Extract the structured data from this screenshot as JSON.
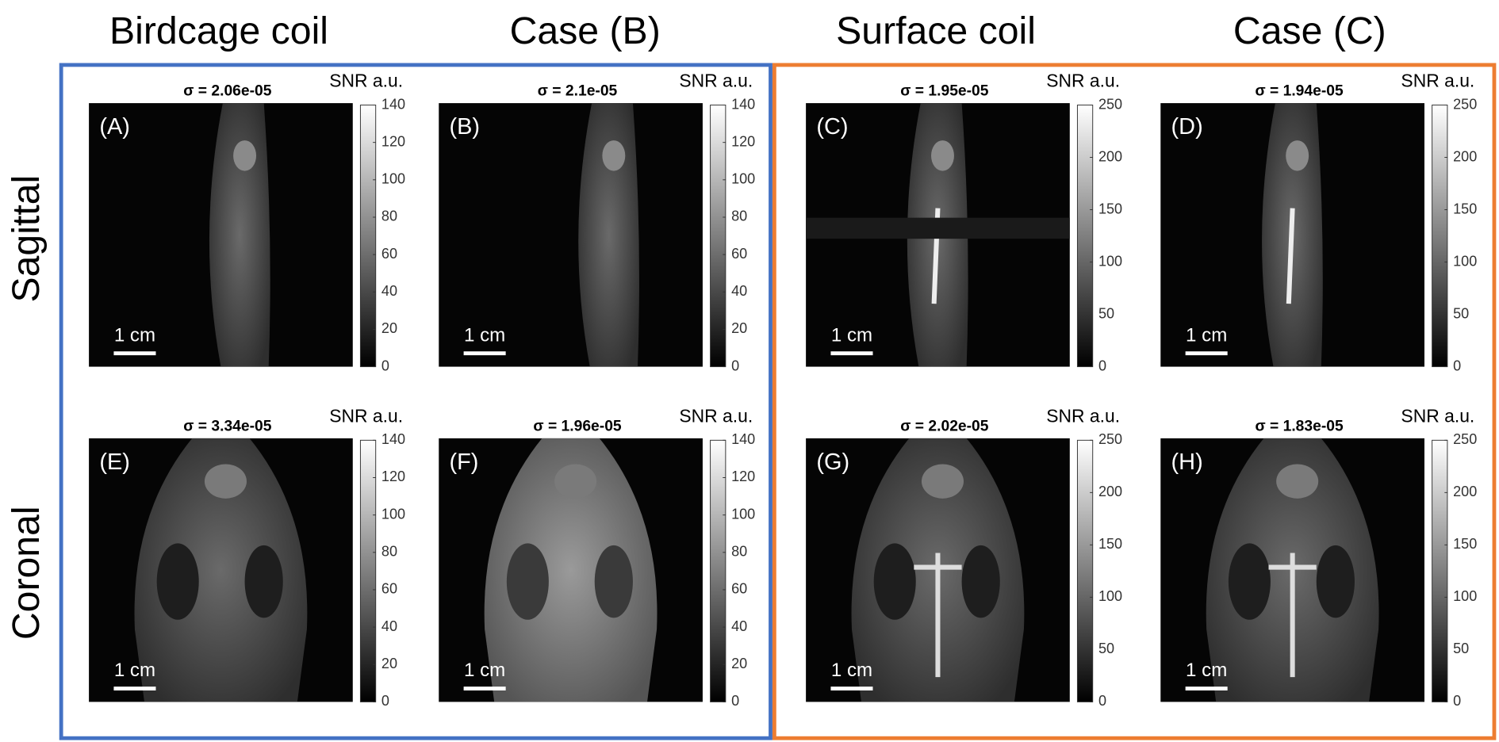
{
  "column_headers": [
    "Birdcage coil",
    "Case (B)",
    "Surface coil",
    "Case (C)"
  ],
  "row_headers": [
    "Sagittal",
    "Coronal"
  ],
  "panels": [
    {
      "label": "(A)",
      "sigma": "σ = 2.06e-05",
      "colorbar_title": "SNR a.u.",
      "colorbar_ticks": [
        0,
        20,
        40,
        60,
        80,
        100,
        120,
        140
      ],
      "scale_bar": "1 cm"
    },
    {
      "label": "(B)",
      "sigma": "σ = 2.1e-05",
      "colorbar_title": "SNR a.u.",
      "colorbar_ticks": [
        0,
        20,
        40,
        60,
        80,
        100,
        120,
        140
      ],
      "scale_bar": "1 cm"
    },
    {
      "label": "(C)",
      "sigma": "σ = 1.95e-05",
      "colorbar_title": "SNR a.u.",
      "colorbar_ticks": [
        0,
        50,
        100,
        150,
        200,
        250
      ],
      "scale_bar": "1 cm"
    },
    {
      "label": "(D)",
      "sigma": "σ = 1.94e-05",
      "colorbar_title": "SNR a.u.",
      "colorbar_ticks": [
        0,
        50,
        100,
        150,
        200,
        250
      ],
      "scale_bar": "1 cm"
    },
    {
      "label": "(E)",
      "sigma": "σ = 3.34e-05",
      "colorbar_title": "SNR a.u.",
      "colorbar_ticks": [
        0,
        20,
        40,
        60,
        80,
        100,
        120,
        140
      ],
      "scale_bar": "1 cm"
    },
    {
      "label": "(F)",
      "sigma": "σ = 1.96e-05",
      "colorbar_title": "SNR a.u.",
      "colorbar_ticks": [
        0,
        20,
        40,
        60,
        80,
        100,
        120,
        140
      ],
      "scale_bar": "1 cm"
    },
    {
      "label": "(G)",
      "sigma": "σ = 2.02e-05",
      "colorbar_title": "SNR a.u.",
      "colorbar_ticks": [
        0,
        50,
        100,
        150,
        200,
        250
      ],
      "scale_bar": "1 cm"
    },
    {
      "label": "(H)",
      "sigma": "σ = 1.83e-05",
      "colorbar_title": "SNR a.u.",
      "colorbar_ticks": [
        0,
        50,
        100,
        150,
        200,
        250
      ],
      "scale_bar": "1 cm"
    }
  ]
}
